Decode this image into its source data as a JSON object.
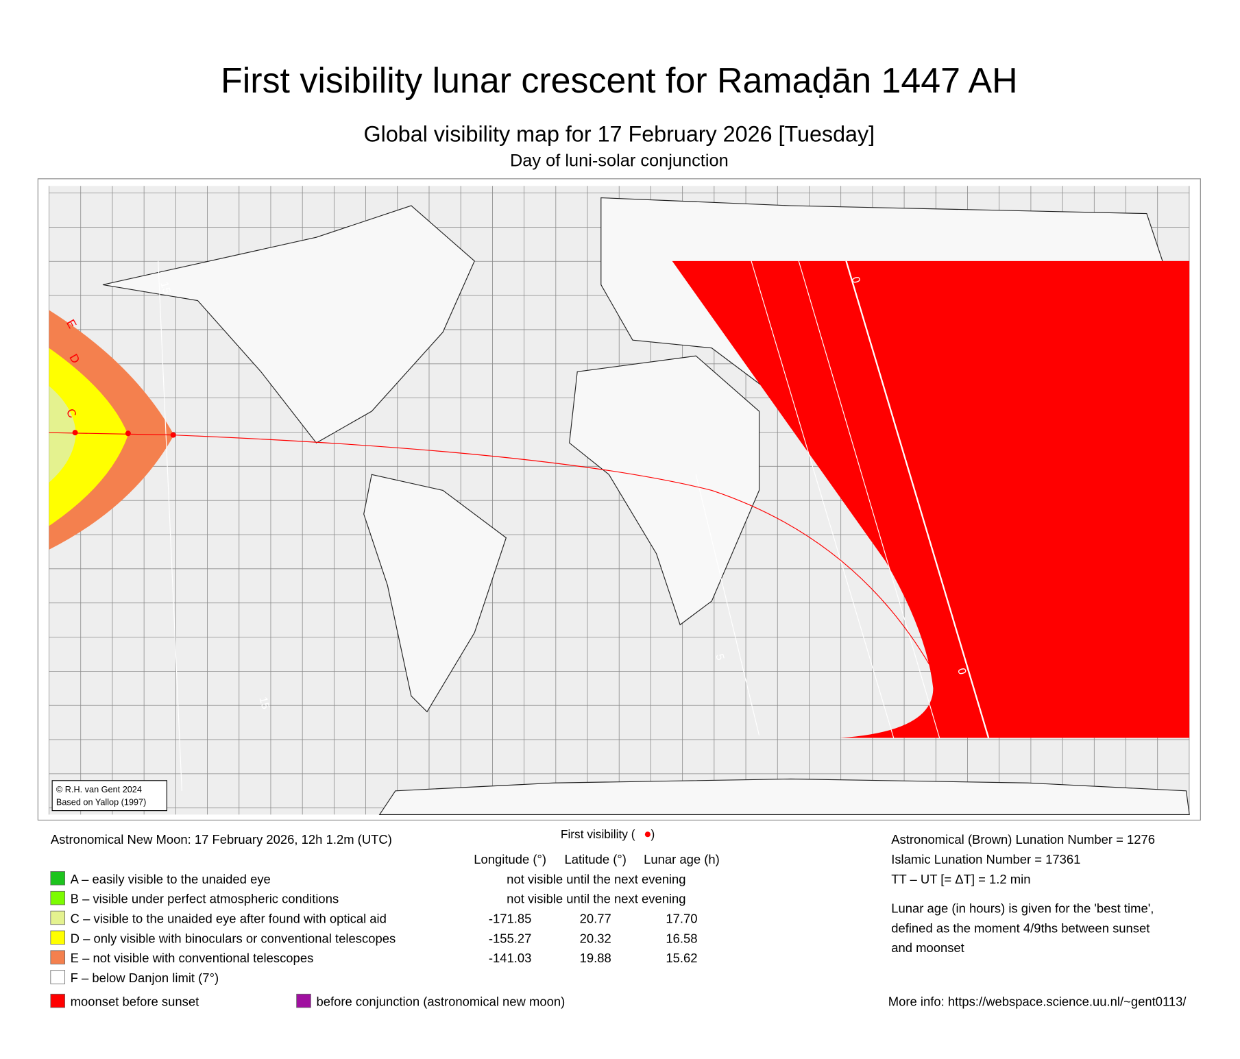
{
  "header": {
    "title": "First visibility lunar crescent for Ramaḍān 1447 AH",
    "subtitle": "Global visibility map for 17 February 2026 [Tuesday]",
    "note": "Day of luni-solar conjunction"
  },
  "map": {
    "zone_labels": [
      "E",
      "D",
      "C"
    ],
    "contour_labels": [
      "0",
      "0",
      "15",
      "15",
      "5"
    ],
    "credit": [
      "© R.H. van Gent 2024",
      "Based on Yallop (1997)"
    ]
  },
  "new_moon": "Astronomical New Moon: 17 February 2026, 12h 1.2m (UTC)",
  "first_visibility": {
    "title": "First visibility (",
    "title_end": ")",
    "columns": [
      "Longitude (°)",
      "Latitude (°)",
      "Lunar age (h)"
    ],
    "rows": [
      [
        "not visible until the next evening"
      ],
      [
        "not visible until the next evening"
      ],
      [
        "-171.85",
        "20.77",
        "17.70"
      ],
      [
        "-155.27",
        "20.32",
        "16.58"
      ],
      [
        "-141.03",
        "19.88",
        "15.62"
      ],
      []
    ]
  },
  "legend": [
    {
      "label": "A – easily visible to the unaided eye",
      "color": "#1dc41d"
    },
    {
      "label": "B – visible under perfect atmospheric conditions",
      "color": "#7cfc00"
    },
    {
      "label": "C – visible to the unaided eye after found with optical aid",
      "color": "#e4f28f"
    },
    {
      "label": "D – only visible with binoculars or conventional telescopes",
      "color": "#ffff00"
    },
    {
      "label": "E – not visible with conventional telescopes",
      "color": "#f4804e"
    },
    {
      "label": "F – below Danjon limit (7°)",
      "color": "#ffffff"
    }
  ],
  "extra_legend": [
    {
      "label": "moonset before sunset",
      "color": "#ff0000"
    },
    {
      "label": "before conjunction (astronomical new moon)",
      "color": "#a010a0"
    }
  ],
  "info": [
    "Astronomical (Brown) Lunation Number = 1276",
    "Islamic Lunation Number = 17361",
    "TT – UT [= ΔT] = 1.2 min"
  ],
  "info_note": [
    "Lunar age (in hours) is given for the 'best time',",
    "defined as the moment 4/9ths between sunset",
    "and moonset"
  ],
  "more_info": "More info: https://webspace.science.uu.nl/~gent0113/"
}
